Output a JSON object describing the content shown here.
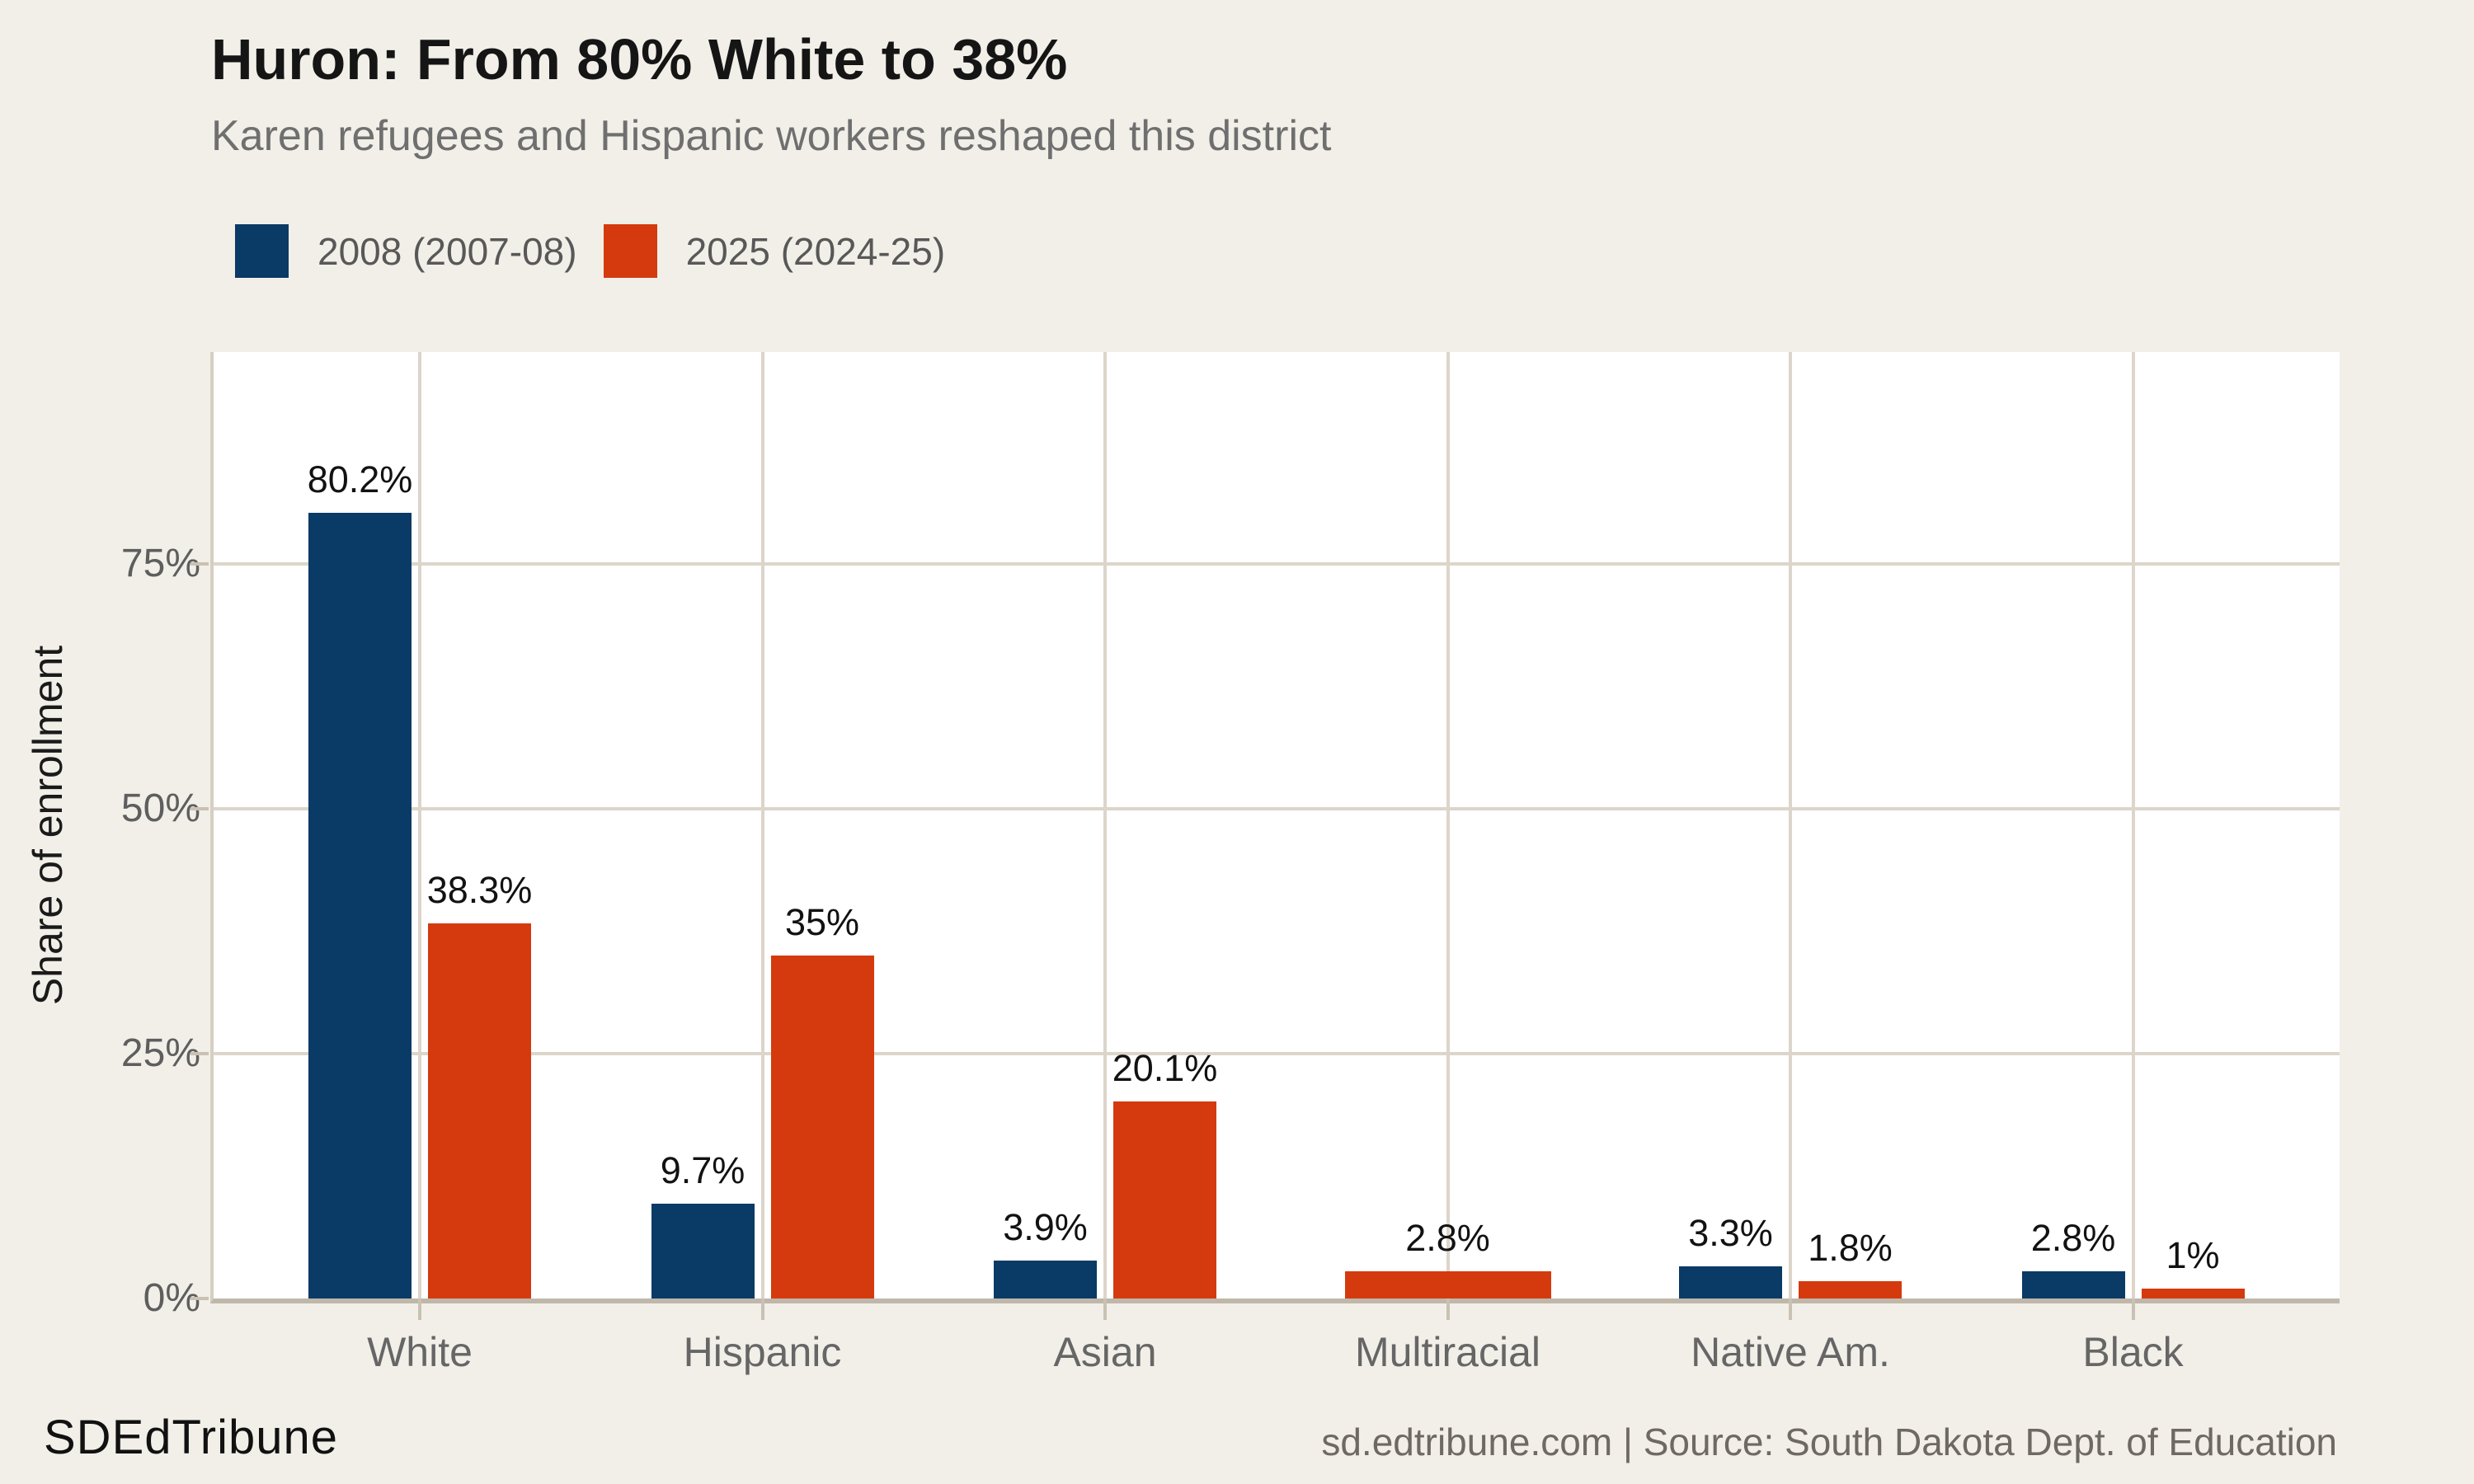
{
  "header": {
    "title": "Huron: From 80% White to 38%",
    "subtitle": "Karen refugees and Hispanic workers reshaped this district"
  },
  "legend": [
    {
      "label": "2008 (2007-08)",
      "color": "#0A3A66"
    },
    {
      "label": "2025 (2024-25)",
      "color": "#D43A0E"
    }
  ],
  "chart_data": {
    "type": "bar",
    "categories": [
      "White",
      "Hispanic",
      "Asian",
      "Multiracial",
      "Native Am.",
      "Black"
    ],
    "series": [
      {
        "name": "2008 (2007-08)",
        "color": "#0A3A66",
        "values": [
          80.2,
          9.7,
          3.9,
          null,
          3.3,
          2.8
        ],
        "labels": [
          "80.2%",
          "9.7%",
          "3.9%",
          null,
          "3.3%",
          "2.8%"
        ]
      },
      {
        "name": "2025 (2024-25)",
        "color": "#D43A0E",
        "values": [
          38.3,
          35,
          20.1,
          2.8,
          1.8,
          1
        ],
        "labels": [
          "38.3%",
          "35%",
          "20.1%",
          "2.8%",
          "1.8%",
          "1%"
        ]
      }
    ],
    "title": "Huron: From 80% White to 38%",
    "subtitle": "Karen refugees and Hispanic workers reshaped this district",
    "xlabel": "",
    "ylabel": "Share of enrollment",
    "yticks": [
      0,
      25,
      50,
      75
    ],
    "ytick_labels": [
      "0%",
      "25%",
      "50%",
      "75%"
    ],
    "ylim": [
      0,
      96.6
    ],
    "grid": true,
    "gridline_color": "#DCD5C9",
    "plot_background": "#FFFFFF",
    "page_background": "#F2EFE8",
    "legend_position": "top-left"
  },
  "footer": {
    "brand": "SDEdTribune",
    "source": "sd.edtribune.com | Source: South Dakota Dept. of Education"
  }
}
